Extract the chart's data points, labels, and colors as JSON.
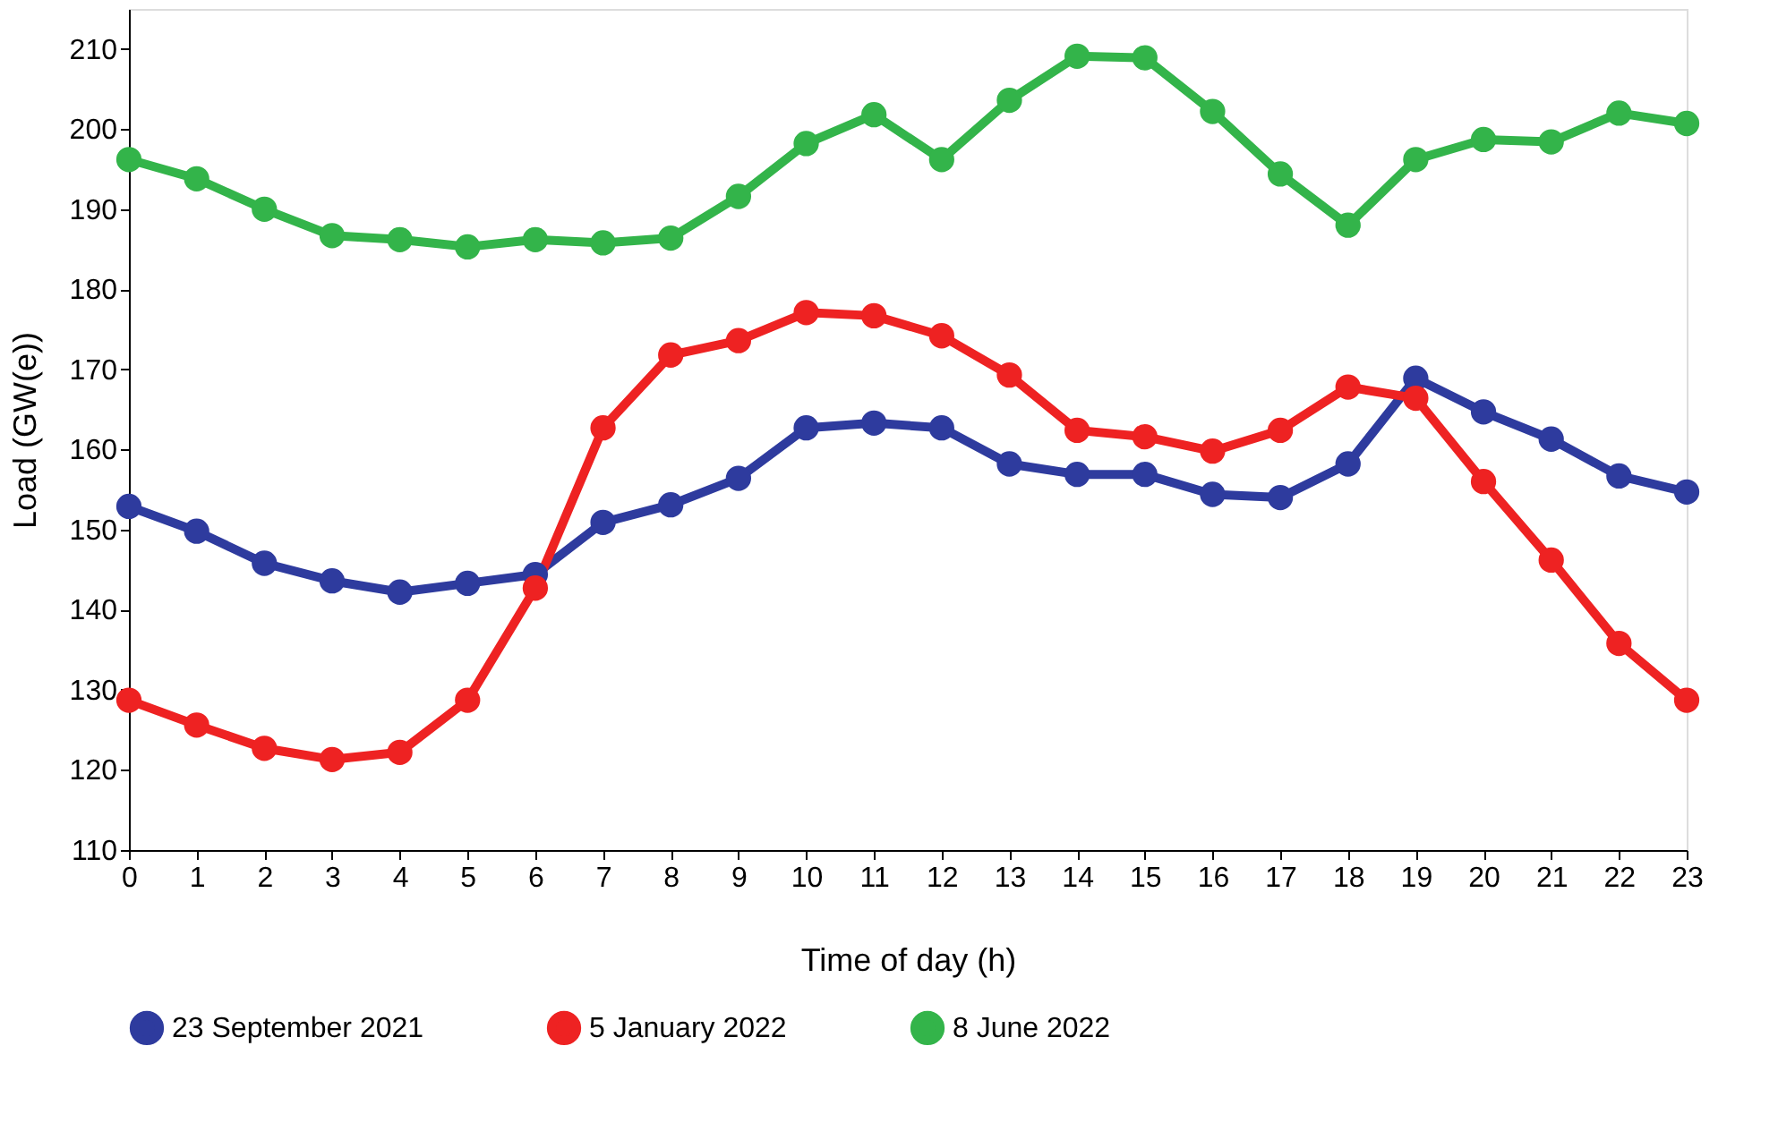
{
  "chart_data": {
    "type": "line",
    "xlabel": "Time of day (h)",
    "ylabel": "Load (GW(e))",
    "x": [
      0,
      1,
      2,
      3,
      4,
      5,
      6,
      7,
      8,
      9,
      10,
      11,
      12,
      13,
      14,
      15,
      16,
      17,
      18,
      19,
      20,
      21,
      22,
      23
    ],
    "xlim": [
      0,
      23
    ],
    "xticks": [
      0,
      1,
      2,
      3,
      4,
      5,
      6,
      7,
      8,
      9,
      10,
      11,
      12,
      13,
      14,
      15,
      16,
      17,
      18,
      19,
      20,
      21,
      22,
      23
    ],
    "ylim": [
      110,
      215
    ],
    "yticks": [
      110,
      120,
      130,
      140,
      150,
      160,
      170,
      180,
      190,
      200,
      210
    ],
    "grid": false,
    "legend": "bottom",
    "marker": "circle",
    "line_style": "solid",
    "series": [
      {
        "name": "23 September 2021",
        "color": "#2e3b9e",
        "values": [
          152.9,
          149.8,
          145.8,
          143.6,
          142.2,
          143.3,
          144.4,
          150.9,
          153.1,
          156.4,
          162.7,
          163.3,
          162.7,
          158.2,
          156.9,
          156.9,
          154.4,
          154.0,
          158.2,
          168.9,
          164.7,
          161.3,
          156.7,
          154.7
        ]
      },
      {
        "name": "5 January 2022",
        "color": "#ee2222",
        "values": [
          128.7,
          125.6,
          122.7,
          121.3,
          122.2,
          128.7,
          142.7,
          162.7,
          171.8,
          173.6,
          177.1,
          176.7,
          174.2,
          169.3,
          162.4,
          161.6,
          159.8,
          162.4,
          167.8,
          166.4,
          156.0,
          146.2,
          135.8,
          128.7
        ]
      },
      {
        "name": "8 June 2022",
        "color": "#33b44a",
        "values": [
          196.2,
          193.8,
          190.0,
          186.7,
          186.2,
          185.3,
          186.2,
          185.8,
          186.4,
          191.6,
          198.2,
          201.8,
          196.2,
          203.6,
          209.1,
          208.9,
          202.2,
          194.4,
          188.0,
          196.2,
          198.7,
          198.4,
          202.0,
          200.7
        ]
      }
    ]
  }
}
